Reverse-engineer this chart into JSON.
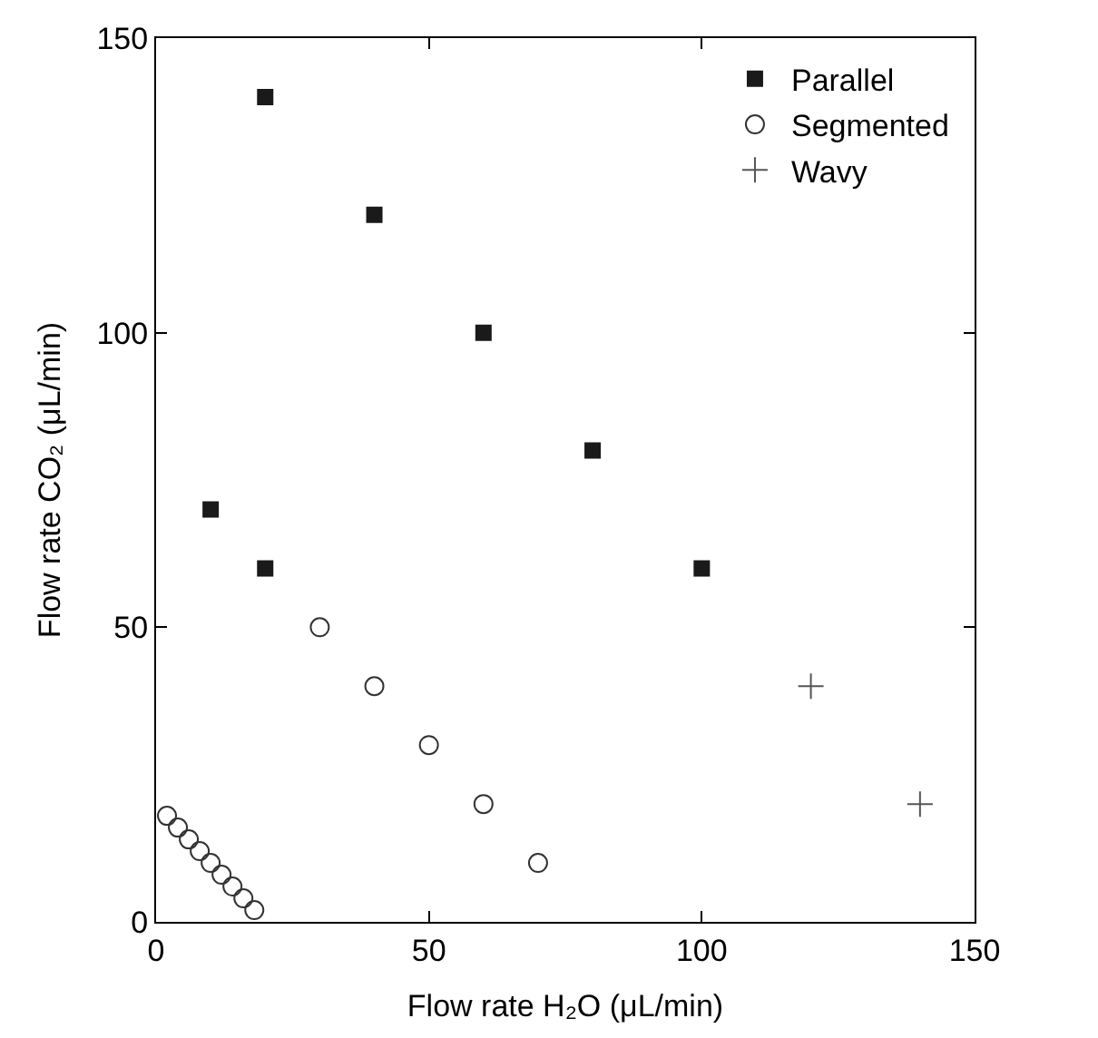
{
  "chart_data": {
    "type": "scatter",
    "xlabel": "Flow rate H₂O (μL/min)",
    "ylabel": "Flow rate CO₂ (μL/min)",
    "xlim": [
      0,
      150
    ],
    "xticks": [
      0,
      50,
      100,
      150
    ],
    "ylim": [
      0,
      150
    ],
    "yticks": [
      0,
      50,
      100,
      150
    ],
    "grid": false,
    "legend": "top right",
    "series": [
      {
        "name": "Parallel",
        "color": "#1a1a1a",
        "marker": "square",
        "x": [
          10,
          20,
          20,
          40,
          60,
          80,
          100
        ],
        "values": [
          70,
          60,
          140,
          120,
          100,
          80,
          60
        ]
      },
      {
        "name": "Segmented",
        "color": "#333333",
        "marker": "circle",
        "x": [
          2,
          4,
          6,
          8,
          10,
          12,
          14,
          16,
          18,
          30,
          40,
          50,
          60,
          70
        ],
        "values": [
          18,
          16,
          14,
          12,
          10,
          8,
          6,
          4,
          2,
          50,
          40,
          30,
          20,
          10
        ]
      },
      {
        "name": "Wavy",
        "color": "#555555",
        "marker": "cross",
        "x": [
          120,
          140
        ],
        "values": [
          40,
          20
        ]
      }
    ]
  }
}
